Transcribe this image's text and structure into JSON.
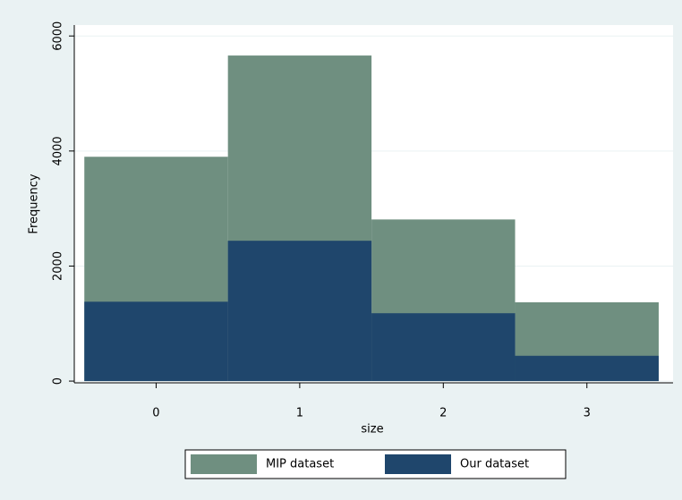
{
  "chart_data": {
    "type": "histogram",
    "x_label": "size",
    "y_label": "Frequency",
    "bins": [
      -0.5,
      0.5,
      1.5,
      2.5,
      3.5
    ],
    "series": [
      {
        "name": "MIP dataset",
        "color": "#6f8f80",
        "values": [
          3900,
          5660,
          2810,
          1370
        ]
      },
      {
        "name": "Our dataset",
        "color": "#1f466c",
        "values": [
          1380,
          2440,
          1180,
          440
        ]
      }
    ],
    "xlim": [
      -0.57,
      3.6
    ],
    "xticks": [
      0,
      1,
      2,
      3
    ],
    "ylim": [
      -30,
      6190
    ],
    "yticks": [
      0,
      2000,
      4000,
      6000
    ],
    "grid": true,
    "legend": "bottom"
  }
}
